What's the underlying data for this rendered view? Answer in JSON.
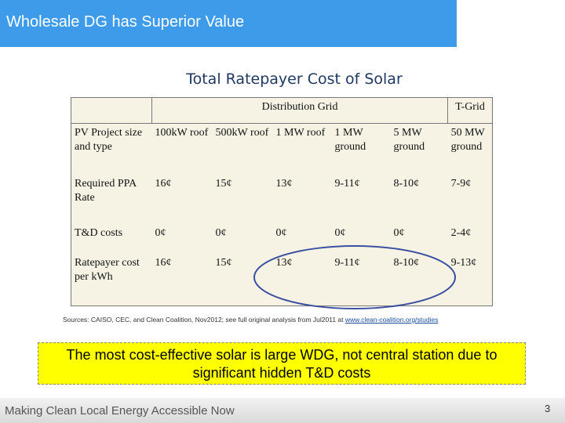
{
  "header": {
    "title": "Wholesale DG has Superior Value"
  },
  "subtitle": "Total Ratepayer Cost of Solar",
  "table": {
    "group_headers": [
      "Distribution Grid",
      "T-Grid"
    ],
    "rows": [
      [
        "PV Project size and type",
        "100kW roof",
        "500kW roof",
        "1 MW roof",
        "1 MW ground",
        "5 MW ground",
        "50 MW ground"
      ],
      [
        "Required PPA Rate",
        "16¢",
        "15¢",
        "13¢",
        "9-11¢",
        "8-10¢",
        "7-9¢"
      ],
      [
        "T&D costs",
        "0¢",
        "0¢",
        "0¢",
        "0¢",
        "0¢",
        "2-4¢"
      ],
      [
        "Ratepayer cost per kWh",
        "16¢",
        "15¢",
        "13¢",
        "9-11¢",
        "8-10¢",
        "9-13¢"
      ]
    ]
  },
  "sources": {
    "text": "Sources: CAISO, CEC, and Clean Coalition, Nov2012; see full original analysis from Jul2011 at",
    "link": "www.clean-coalition.org/studies"
  },
  "callout": "The most cost-effective solar is large WDG, not central station due to significant hidden T&D costs",
  "footer": "Making Clean Local Energy Accessible Now",
  "page_number": "3"
}
